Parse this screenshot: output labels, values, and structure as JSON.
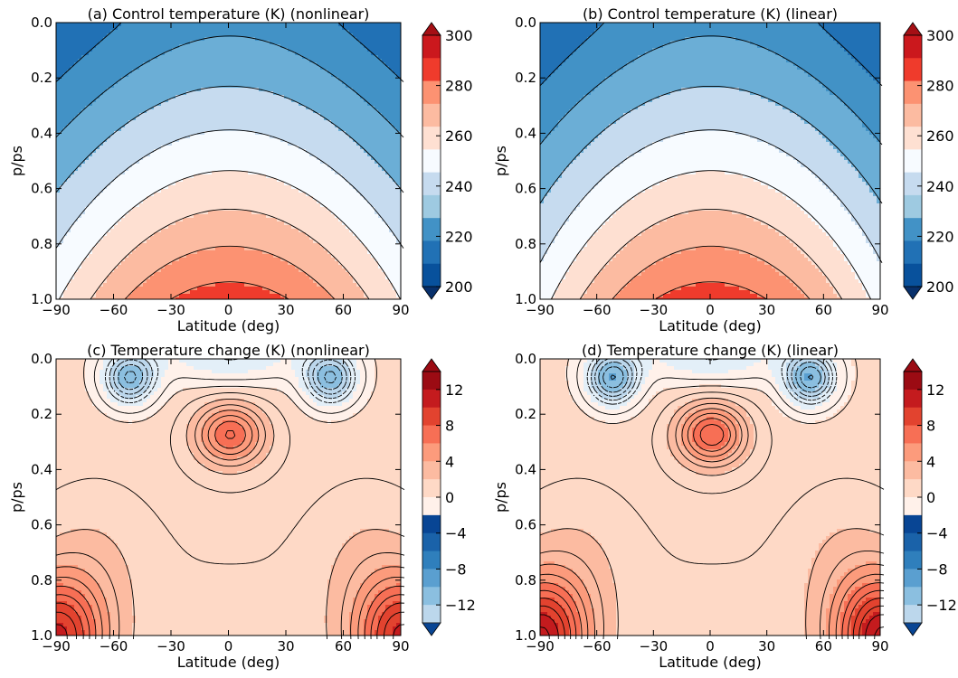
{
  "palette": {
    "temperature_levels": [
      "#08306b",
      "#08519c",
      "#2171b5",
      "#4292c6",
      "#6baed6",
      "#9ecae1",
      "#c6dbef",
      "#deebf7",
      "#f7fbff",
      "#fff5f0",
      "#fee0d2",
      "#fcbba1",
      "#fc9272",
      "#fb6a4a",
      "#ef3b2c",
      "#cb181d",
      "#a50f15",
      "#67000d"
    ],
    "temperature_change": {
      "negative": [
        "#084594",
        "#1a62a9",
        "#2f7fbc",
        "#5a9fd0",
        "#8bbfe0",
        "#bcd7ec",
        "#e3eff8"
      ],
      "positive": [
        "#fff1ea",
        "#fed9c6",
        "#fcbba1",
        "#fc9b7c",
        "#f76f55",
        "#e2432f",
        "#c41b1e",
        "#9b0b13"
      ]
    }
  },
  "chart_data": [
    {
      "type": "heatmap",
      "panel": "a",
      "title": "(a) Control temperature (K) (nonlinear)",
      "xlabel": "Latitude (deg)",
      "ylabel": "p/ps",
      "x_ticks": [
        "−90",
        "−60",
        "−30",
        "0",
        "30",
        "60",
        "90"
      ],
      "y_ticks": [
        "0.0",
        "0.2",
        "0.4",
        "0.6",
        "0.8",
        "1.0"
      ],
      "xlim": [
        -90,
        90
      ],
      "ylim": [
        1.0,
        0.0
      ],
      "colorbar": {
        "ticks": [
          "300",
          "280",
          "260",
          "240",
          "220",
          "200"
        ],
        "range": [
          200,
          300
        ],
        "interval": 10,
        "extend": "both"
      },
      "contours": [
        {
          "level": 300,
          "points": [
            [
              -5,
              1.0
            ],
            [
              -3,
              0.985
            ],
            [
              3,
              0.985
            ],
            [
              5,
              1.0
            ]
          ]
        },
        {
          "level": 290,
          "points": [
            [
              -35,
              1.0
            ],
            [
              -30,
              0.9
            ],
            [
              -20,
              0.84
            ],
            [
              -5,
              0.82
            ],
            [
              5,
              0.82
            ],
            [
              20,
              0.84
            ],
            [
              30,
              0.9
            ],
            [
              35,
              1.0
            ]
          ]
        },
        {
          "level": 280,
          "points": [
            [
              -55,
              1.0
            ],
            [
              -48,
              0.85
            ],
            [
              -35,
              0.72
            ],
            [
              -20,
              0.65
            ],
            [
              0,
              0.63
            ],
            [
              20,
              0.65
            ],
            [
              35,
              0.72
            ],
            [
              48,
              0.85
            ],
            [
              55,
              1.0
            ]
          ]
        },
        {
          "level": 270,
          "points": [
            [
              -75,
              1.0
            ],
            [
              -62,
              0.85
            ],
            [
              -45,
              0.65
            ],
            [
              -30,
              0.52
            ],
            [
              -10,
              0.48
            ],
            [
              10,
              0.48
            ],
            [
              30,
              0.52
            ],
            [
              45,
              0.65
            ],
            [
              62,
              0.85
            ],
            [
              75,
              1.0
            ]
          ]
        },
        {
          "level": 260,
          "points": [
            [
              -90,
              0.94
            ],
            [
              -75,
              0.8
            ],
            [
              -58,
              0.6
            ],
            [
              -42,
              0.45
            ],
            [
              -32,
              0.4
            ],
            [
              0,
              0.38
            ],
            [
              32,
              0.4
            ],
            [
              42,
              0.45
            ],
            [
              58,
              0.6
            ],
            [
              75,
              0.8
            ],
            [
              90,
              0.94
            ]
          ]
        },
        {
          "level": 250,
          "points": [
            [
              -90,
              0.57
            ],
            [
              -70,
              0.5
            ],
            [
              -50,
              0.42
            ],
            [
              -40,
              0.36
            ],
            [
              -30,
              0.32
            ],
            [
              0,
              0.31
            ],
            [
              30,
              0.32
            ],
            [
              40,
              0.36
            ],
            [
              50,
              0.42
            ],
            [
              70,
              0.5
            ],
            [
              90,
              0.57
            ]
          ]
        },
        {
          "level": 240,
          "points": [
            [
              -90,
              0.4
            ],
            [
              -65,
              0.4
            ],
            [
              -50,
              0.38
            ],
            [
              -42,
              0.33
            ],
            [
              -35,
              0.26
            ],
            [
              -28,
              0.15
            ],
            [
              -10,
              0.14
            ],
            [
              0,
              0.17
            ],
            [
              10,
              0.14
            ],
            [
              28,
              0.15
            ],
            [
              35,
              0.26
            ],
            [
              42,
              0.33
            ],
            [
              50,
              0.38
            ],
            [
              65,
              0.4
            ],
            [
              90,
              0.4
            ]
          ]
        },
        {
          "level": 230,
          "points": [
            [
              -90,
              0.25
            ],
            [
              -70,
              0.25
            ],
            [
              -55,
              0.25
            ],
            [
              -45,
              0.19
            ],
            [
              -35,
              0.09
            ],
            [
              -20,
              0.07
            ],
            [
              -5,
              0.1
            ],
            [
              0,
              0.12
            ],
            [
              5,
              0.1
            ],
            [
              20,
              0.07
            ],
            [
              35,
              0.09
            ],
            [
              45,
              0.19
            ],
            [
              55,
              0.25
            ],
            [
              70,
              0.25
            ],
            [
              90,
              0.25
            ]
          ]
        },
        {
          "level": 220,
          "points": [
            [
              -90,
              0.2
            ],
            [
              -70,
              0.2
            ],
            [
              -52,
              0.16
            ],
            [
              -42,
              0.05
            ],
            [
              -28,
              0.03
            ],
            [
              0,
              0.04
            ],
            [
              28,
              0.03
            ],
            [
              42,
              0.05
            ],
            [
              52,
              0.16
            ],
            [
              70,
              0.2
            ],
            [
              90,
              0.2
            ]
          ]
        }
      ]
    },
    {
      "type": "heatmap",
      "panel": "b",
      "title": "(b) Control temperature (K) (linear)",
      "xlabel": "Latitude (deg)",
      "ylabel": "p/ps",
      "x_ticks": [
        "−90",
        "−60",
        "−30",
        "0",
        "30",
        "60",
        "90"
      ],
      "y_ticks": [
        "0.0",
        "0.2",
        "0.4",
        "0.6",
        "0.8",
        "1.0"
      ],
      "xlim": [
        -90,
        90
      ],
      "ylim": [
        1.0,
        0.0
      ],
      "colorbar": {
        "ticks": [
          "300",
          "280",
          "260",
          "240",
          "220",
          "200"
        ],
        "range": [
          200,
          300
        ],
        "interval": 10,
        "extend": "both"
      },
      "contours": [
        {
          "level": 300,
          "points": [
            [
              -5,
              1.0
            ],
            [
              -3,
              0.985
            ],
            [
              3,
              0.985
            ],
            [
              5,
              1.0
            ]
          ]
        },
        {
          "level": 290,
          "points": [
            [
              -32,
              1.0
            ],
            [
              -28,
              0.9
            ],
            [
              -18,
              0.83
            ],
            [
              0,
              0.81
            ],
            [
              18,
              0.83
            ],
            [
              28,
              0.9
            ],
            [
              32,
              1.0
            ]
          ]
        },
        {
          "level": 280,
          "points": [
            [
              -52,
              1.0
            ],
            [
              -45,
              0.85
            ],
            [
              -30,
              0.7
            ],
            [
              -15,
              0.65
            ],
            [
              0,
              0.63
            ],
            [
              15,
              0.65
            ],
            [
              30,
              0.7
            ],
            [
              45,
              0.85
            ],
            [
              52,
              1.0
            ]
          ]
        },
        {
          "level": 270,
          "points": [
            [
              -75,
              1.0
            ],
            [
              -60,
              0.82
            ],
            [
              -42,
              0.62
            ],
            [
              -28,
              0.52
            ],
            [
              0,
              0.48
            ],
            [
              28,
              0.52
            ],
            [
              42,
              0.62
            ],
            [
              60,
              0.82
            ],
            [
              75,
              1.0
            ]
          ]
        },
        {
          "level": 260,
          "points": [
            [
              -90,
              0.9
            ],
            [
              -72,
              0.75
            ],
            [
              -55,
              0.58
            ],
            [
              -40,
              0.44
            ],
            [
              -30,
              0.39
            ],
            [
              0,
              0.37
            ],
            [
              30,
              0.39
            ],
            [
              40,
              0.44
            ],
            [
              55,
              0.58
            ],
            [
              72,
              0.75
            ],
            [
              90,
              0.9
            ]
          ]
        },
        {
          "level": 250,
          "points": [
            [
              -90,
              0.5
            ],
            [
              -65,
              0.46
            ],
            [
              -48,
              0.4
            ],
            [
              -38,
              0.35
            ],
            [
              -30,
              0.32
            ],
            [
              0,
              0.3
            ],
            [
              30,
              0.32
            ],
            [
              38,
              0.35
            ],
            [
              48,
              0.4
            ],
            [
              65,
              0.46
            ],
            [
              90,
              0.5
            ]
          ]
        },
        {
          "level": 240,
          "points": [
            [
              -90,
              0.35
            ],
            [
              -60,
              0.35
            ],
            [
              -45,
              0.33
            ],
            [
              -38,
              0.27
            ],
            [
              -32,
              0.15
            ],
            [
              -25,
              0.1
            ],
            [
              -8,
              0.12
            ],
            [
              0,
              0.15
            ],
            [
              8,
              0.12
            ],
            [
              25,
              0.1
            ],
            [
              32,
              0.15
            ],
            [
              38,
              0.27
            ],
            [
              45,
              0.33
            ],
            [
              60,
              0.35
            ],
            [
              90,
              0.35
            ]
          ]
        },
        {
          "level": 230,
          "points": [
            [
              -90,
              0.03
            ],
            [
              -60,
              0.02
            ],
            [
              -40,
              0.01
            ],
            [
              0,
              0.02
            ],
            [
              40,
              0.01
            ],
            [
              60,
              0.02
            ],
            [
              90,
              0.03
            ]
          ]
        }
      ]
    },
    {
      "type": "heatmap",
      "panel": "c",
      "title": "(c) Temperature change (K) (nonlinear)",
      "xlabel": "Latitude (deg)",
      "ylabel": "p/ps",
      "x_ticks": [
        "−90",
        "−60",
        "−30",
        "0",
        "30",
        "60",
        "90"
      ],
      "y_ticks": [
        "0.0",
        "0.2",
        "0.4",
        "0.6",
        "0.8",
        "1.0"
      ],
      "xlim": [
        -90,
        90
      ],
      "ylim": [
        1.0,
        0.0
      ],
      "colorbar": {
        "ticks": [
          "12",
          "8",
          "4",
          "0",
          "−4",
          "−8",
          "−12"
        ],
        "range": [
          -14,
          14
        ],
        "interval": 2,
        "extend": "both"
      },
      "structure": {
        "warm_core_max_K": 9,
        "warm_core_center": [
          0,
          0.27
        ],
        "cool_lobes_min_K": -5,
        "cool_lobe_centers": [
          [
            -50,
            0.08
          ],
          [
            50,
            0.08
          ]
        ],
        "surface_polar_max_K": 12
      }
    },
    {
      "type": "heatmap",
      "panel": "d",
      "title": "(d) Temperature change (K) (linear)",
      "xlabel": "Latitude (deg)",
      "ylabel": "p/ps",
      "x_ticks": [
        "−90",
        "−60",
        "−30",
        "0",
        "30",
        "60",
        "90"
      ],
      "y_ticks": [
        "0.0",
        "0.2",
        "0.4",
        "0.6",
        "0.8",
        "1.0"
      ],
      "xlim": [
        -90,
        90
      ],
      "ylim": [
        1.0,
        0.0
      ],
      "colorbar": {
        "ticks": [
          "12",
          "8",
          "4",
          "0",
          "−4",
          "−8",
          "−12"
        ],
        "range": [
          -14,
          14
        ],
        "interval": 2,
        "extend": "both"
      },
      "structure": {
        "warm_core_max_K": 10,
        "warm_core_center": [
          0,
          0.26
        ],
        "cool_lobes_min_K": -6,
        "cool_lobe_centers": [
          [
            -50,
            0.08
          ],
          [
            50,
            0.08
          ]
        ],
        "surface_polar_max_K": 13
      }
    }
  ]
}
